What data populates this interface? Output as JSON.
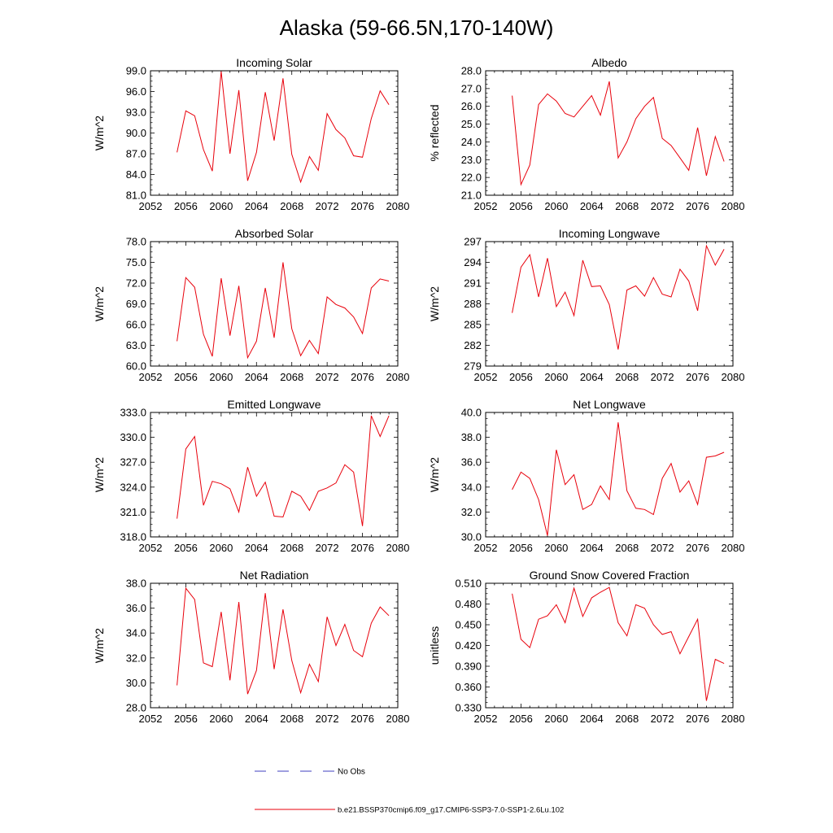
{
  "page": {
    "title": "Alaska (59-66.5N,170-140W)"
  },
  "legend": {
    "obs_label": "No Obs",
    "model_label": "b.e21.BSSP370cmip6.f09_g17.CMIP6-SSP3-7.0-SSP1-2.6Lu.102",
    "model_color": "#e8000b",
    "obs_color": "#3f3fbf"
  },
  "chart_data": [
    {
      "type": "line",
      "title": "Incoming Solar",
      "ylabel": "W/m^2",
      "xlim": [
        2052,
        2080
      ],
      "xticks": [
        2052,
        2056,
        2060,
        2064,
        2068,
        2072,
        2076,
        2080
      ],
      "ylim": [
        81,
        99
      ],
      "yticks": [
        "81.0",
        "84.0",
        "87.0",
        "90.0",
        "93.0",
        "96.0",
        "99.0"
      ],
      "series": [
        {
          "x": [
            2055,
            2056,
            2057,
            2058,
            2059,
            2060,
            2061,
            2062,
            2063,
            2064,
            2065,
            2066,
            2067,
            2068,
            2069,
            2070,
            2071,
            2072,
            2073,
            2074,
            2075,
            2076,
            2077,
            2078,
            2079
          ],
          "values": [
            87.2,
            93.2,
            92.5,
            87.6,
            84.5,
            98.9,
            87.0,
            96.2,
            83.1,
            87.2,
            95.9,
            88.9,
            97.9,
            86.9,
            82.9,
            86.6,
            84.6,
            92.8,
            90.5,
            89.3,
            86.7,
            86.5,
            92.1,
            96.1,
            94.1
          ]
        }
      ]
    },
    {
      "type": "line",
      "title": "Albedo",
      "ylabel": "% reflected",
      "xlim": [
        2052,
        2080
      ],
      "xticks": [
        2052,
        2056,
        2060,
        2064,
        2068,
        2072,
        2076,
        2080
      ],
      "ylim": [
        21,
        28
      ],
      "yticks": [
        "21.0",
        "22.0",
        "23.0",
        "24.0",
        "25.0",
        "26.0",
        "27.0",
        "28.0"
      ],
      "series": [
        {
          "x": [
            2055,
            2056,
            2057,
            2058,
            2059,
            2060,
            2061,
            2062,
            2063,
            2064,
            2065,
            2066,
            2067,
            2068,
            2069,
            2070,
            2071,
            2072,
            2073,
            2074,
            2075,
            2076,
            2077,
            2078,
            2079
          ],
          "values": [
            26.6,
            21.6,
            22.7,
            26.1,
            26.7,
            26.3,
            25.6,
            25.4,
            26.0,
            26.6,
            25.5,
            27.4,
            23.1,
            24.0,
            25.3,
            26.0,
            26.5,
            24.2,
            23.8,
            23.1,
            22.4,
            24.8,
            22.1,
            24.3,
            22.9
          ]
        }
      ]
    },
    {
      "type": "line",
      "title": "Absorbed Solar",
      "ylabel": "W/m^2",
      "xlim": [
        2052,
        2080
      ],
      "xticks": [
        2052,
        2056,
        2060,
        2064,
        2068,
        2072,
        2076,
        2080
      ],
      "ylim": [
        60,
        78
      ],
      "yticks": [
        "60.0",
        "63.0",
        "66.0",
        "69.0",
        "72.0",
        "75.0",
        "78.0"
      ],
      "series": [
        {
          "x": [
            2055,
            2056,
            2057,
            2058,
            2059,
            2060,
            2061,
            2062,
            2063,
            2064,
            2065,
            2066,
            2067,
            2068,
            2069,
            2070,
            2071,
            2072,
            2073,
            2074,
            2075,
            2076,
            2077,
            2078,
            2079
          ],
          "values": [
            63.6,
            72.8,
            71.4,
            64.6,
            61.4,
            72.7,
            64.4,
            71.6,
            61.2,
            63.6,
            71.3,
            64.1,
            75.0,
            65.4,
            61.5,
            63.7,
            61.8,
            70.0,
            68.9,
            68.4,
            67.1,
            64.7,
            71.3,
            72.6,
            72.3
          ]
        }
      ]
    },
    {
      "type": "line",
      "title": "Incoming Longwave",
      "ylabel": "W/m^2",
      "xlim": [
        2052,
        2080
      ],
      "xticks": [
        2052,
        2056,
        2060,
        2064,
        2068,
        2072,
        2076,
        2080
      ],
      "ylim": [
        279,
        297
      ],
      "yticks": [
        "279",
        "282",
        "285",
        "288",
        "291",
        "294",
        "297"
      ],
      "series": [
        {
          "x": [
            2055,
            2056,
            2057,
            2058,
            2059,
            2060,
            2061,
            2062,
            2063,
            2064,
            2065,
            2066,
            2067,
            2068,
            2069,
            2070,
            2071,
            2072,
            2073,
            2074,
            2075,
            2076,
            2077,
            2078,
            2079
          ],
          "values": [
            286.7,
            293.3,
            295.1,
            289.0,
            294.6,
            287.6,
            289.7,
            286.3,
            294.3,
            290.5,
            290.6,
            287.9,
            281.4,
            290.0,
            290.6,
            289.1,
            291.8,
            289.4,
            289.0,
            293.0,
            291.3,
            287.0,
            296.4,
            293.6,
            295.9
          ]
        }
      ]
    },
    {
      "type": "line",
      "title": "Emitted Longwave",
      "ylabel": "W/m^2",
      "xlim": [
        2052,
        2080
      ],
      "xticks": [
        2052,
        2056,
        2060,
        2064,
        2068,
        2072,
        2076,
        2080
      ],
      "ylim": [
        318,
        333
      ],
      "yticks": [
        "318.0",
        "321.0",
        "324.0",
        "327.0",
        "330.0",
        "333.0"
      ],
      "series": [
        {
          "x": [
            2055,
            2056,
            2057,
            2058,
            2059,
            2060,
            2061,
            2062,
            2063,
            2064,
            2065,
            2066,
            2067,
            2068,
            2069,
            2070,
            2071,
            2072,
            2073,
            2074,
            2075,
            2076,
            2077,
            2078,
            2079
          ],
          "values": [
            320.2,
            328.6,
            330.1,
            321.8,
            324.7,
            324.4,
            323.8,
            321.0,
            326.4,
            322.9,
            324.6,
            320.5,
            320.4,
            323.5,
            322.9,
            321.2,
            323.5,
            323.9,
            324.5,
            326.7,
            325.8,
            319.3,
            332.6,
            330.1,
            332.6
          ]
        }
      ]
    },
    {
      "type": "line",
      "title": "Net Longwave",
      "ylabel": "W/m^2",
      "xlim": [
        2052,
        2080
      ],
      "xticks": [
        2052,
        2056,
        2060,
        2064,
        2068,
        2072,
        2076,
        2080
      ],
      "ylim": [
        30,
        40
      ],
      "yticks": [
        "30.0",
        "32.0",
        "34.0",
        "36.0",
        "38.0",
        "40.0"
      ],
      "series": [
        {
          "x": [
            2055,
            2056,
            2057,
            2058,
            2059,
            2060,
            2061,
            2062,
            2063,
            2064,
            2065,
            2066,
            2067,
            2068,
            2069,
            2070,
            2071,
            2072,
            2073,
            2074,
            2075,
            2076,
            2077,
            2078,
            2079
          ],
          "values": [
            33.8,
            35.2,
            34.7,
            33.0,
            30.1,
            37.0,
            34.2,
            35.0,
            32.2,
            32.6,
            34.1,
            33.0,
            39.2,
            33.7,
            32.3,
            32.2,
            31.8,
            34.7,
            35.9,
            33.6,
            34.5,
            32.6,
            36.4,
            36.5,
            36.8
          ]
        }
      ]
    },
    {
      "type": "line",
      "title": "Net Radiation",
      "ylabel": "W/m^2",
      "xlim": [
        2052,
        2080
      ],
      "xticks": [
        2052,
        2056,
        2060,
        2064,
        2068,
        2072,
        2076,
        2080
      ],
      "ylim": [
        28,
        38
      ],
      "yticks": [
        "28.0",
        "30.0",
        "32.0",
        "34.0",
        "36.0",
        "38.0"
      ],
      "series": [
        {
          "x": [
            2055,
            2056,
            2057,
            2058,
            2059,
            2060,
            2061,
            2062,
            2063,
            2064,
            2065,
            2066,
            2067,
            2068,
            2069,
            2070,
            2071,
            2072,
            2073,
            2074,
            2075,
            2076,
            2077,
            2078,
            2079
          ],
          "values": [
            29.8,
            37.6,
            36.7,
            31.6,
            31.3,
            35.7,
            30.2,
            36.5,
            29.1,
            31.0,
            37.2,
            31.1,
            35.9,
            31.8,
            29.2,
            31.5,
            30.1,
            35.3,
            33.0,
            34.7,
            32.6,
            32.1,
            34.8,
            36.1,
            35.4
          ]
        }
      ]
    },
    {
      "type": "line",
      "title": "Ground Snow Covered Fraction",
      "ylabel": "unitless",
      "xlim": [
        2052,
        2080
      ],
      "xticks": [
        2052,
        2056,
        2060,
        2064,
        2068,
        2072,
        2076,
        2080
      ],
      "ylim": [
        0.33,
        0.51
      ],
      "yticks": [
        "0.330",
        "0.360",
        "0.390",
        "0.420",
        "0.450",
        "0.480",
        "0.510"
      ],
      "series": [
        {
          "x": [
            2055,
            2056,
            2057,
            2058,
            2059,
            2060,
            2061,
            2062,
            2063,
            2064,
            2065,
            2066,
            2067,
            2068,
            2069,
            2070,
            2071,
            2072,
            2073,
            2074,
            2075,
            2076,
            2077,
            2078,
            2079
          ],
          "values": [
            0.495,
            0.429,
            0.417,
            0.458,
            0.463,
            0.479,
            0.453,
            0.503,
            0.462,
            0.489,
            0.497,
            0.504,
            0.453,
            0.434,
            0.479,
            0.474,
            0.45,
            0.436,
            0.44,
            0.408,
            0.433,
            0.458,
            0.34,
            0.4,
            0.394
          ]
        }
      ]
    }
  ]
}
